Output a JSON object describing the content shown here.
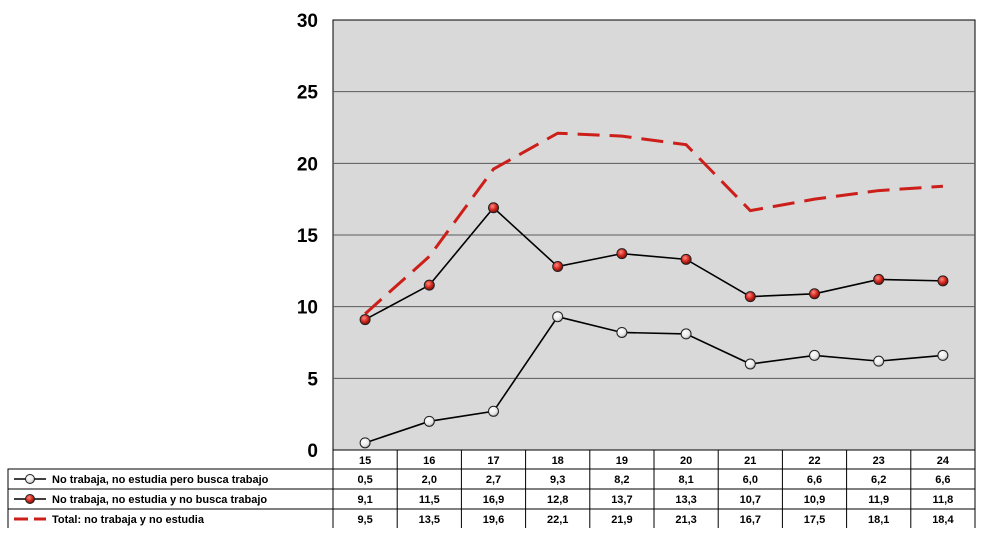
{
  "chart_data": {
    "type": "line",
    "title": "",
    "xlabel": "",
    "ylabel": "",
    "ylim": [
      0,
      30
    ],
    "yticks": [
      0,
      5,
      10,
      15,
      20,
      25,
      30
    ],
    "grid": true,
    "legend_placement": "bottom-left (data table)",
    "categories": [
      "15",
      "16",
      "17",
      "18",
      "19",
      "20",
      "21",
      "22",
      "23",
      "24"
    ],
    "series": [
      {
        "name": "No trabaja, no estudia pero busca trabajo",
        "values": [
          0.5,
          2.0,
          2.7,
          9.3,
          8.2,
          8.1,
          6.0,
          6.6,
          6.2,
          6.6
        ],
        "labels": [
          "0,5",
          "2,0",
          "2,7",
          "9,3",
          "8,2",
          "8,1",
          "6,0",
          "6,6",
          "6,2",
          "6,6"
        ],
        "style": "solid-white-markers",
        "color": "#000000",
        "marker_color": "#ffffff"
      },
      {
        "name": "No trabaja, no estudia y no busca trabajo",
        "values": [
          9.1,
          11.5,
          16.9,
          12.8,
          13.7,
          13.3,
          10.7,
          10.9,
          11.9,
          11.8
        ],
        "labels": [
          "9,1",
          "11,5",
          "16,9",
          "12,8",
          "13,7",
          "13,3",
          "10,7",
          "10,9",
          "11,9",
          "11,8"
        ],
        "style": "solid-red-markers",
        "color": "#000000",
        "marker_color": "#cc1f1a"
      },
      {
        "name": "Total: no trabaja y no estudia",
        "values": [
          9.5,
          13.5,
          19.6,
          22.1,
          21.9,
          21.3,
          16.7,
          17.5,
          18.1,
          18.4
        ],
        "labels": [
          "9,5",
          "13,5",
          "19,6",
          "22,1",
          "21,9",
          "21,3",
          "16,7",
          "17,5",
          "18,1",
          "18,4"
        ],
        "style": "dashed",
        "color": "#cc1f1a"
      }
    ],
    "colors": {
      "plot_background": "#d9d9d9",
      "grid": "#5a5a5a"
    }
  }
}
